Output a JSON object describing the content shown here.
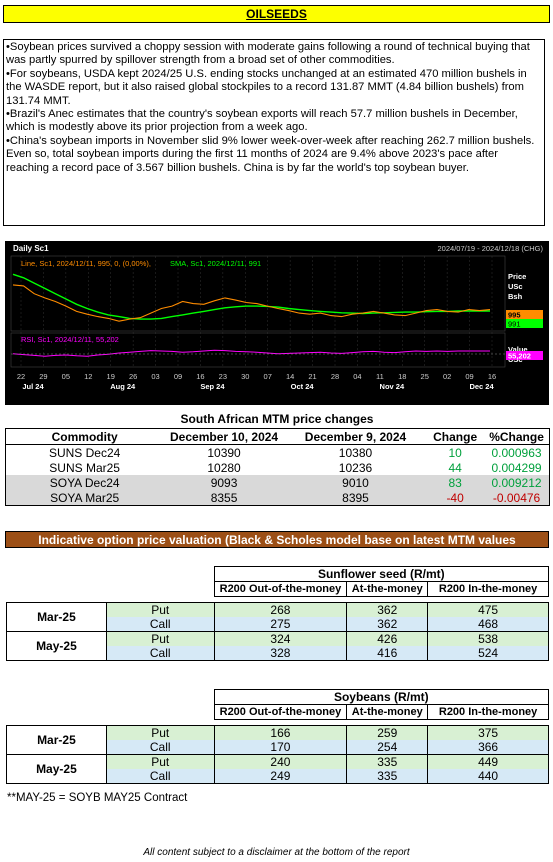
{
  "title": "OILSEEDS",
  "bullets": [
    "•Soybean prices survived a choppy session with moderate gains following a round of technical buying that was partly spurred by spillover strength from a broad set of other commodities.",
    "•For soybeans, USDA kept 2024/25 U.S. ending stocks unchanged at an estimated 470 million bushels in the WASDE report, but it also raised global stockpiles to a record 131.87 MMT (4.84 billion bushels) from 131.74 MMT.",
    "•Brazil's Anec estimates that the country's soybean exports will reach 57.7 million bushels in December, which is modestly above its prior projection from a week ago.",
    "•China's soybean imports in November slid 9% lower week-over-week after reaching 262.7 million bushels. Even so, total soybean imports during the first 11 months of 2024 are 9.4% above 2023's pace after reaching a record pace of 3.567 billion bushels. China is by far the world's top soybean buyer."
  ],
  "chart": {
    "title": "Daily Sc1",
    "date_range": "2024/07/19 - 2024/12/18 (CHG)",
    "legend_line": "Line, Sc1, 2024/12/11, 995, 0, (0,00%),",
    "legend_sma": "SMA, Sc1, 2024/12/11, 991",
    "legend_rsi": "RSI, Sc1, 2024/12/11, 55,202",
    "axis_price_lines": [
      "Price",
      "USc",
      "Bsh"
    ],
    "axis_value_lines": [
      "Value",
      "USc"
    ],
    "badge_price": "995",
    "badge_sma": "991",
    "badge_rsi": "55,202",
    "colors": {
      "line": "#ff8c00",
      "sma": "#00ff00",
      "rsi": "#ff00ff",
      "badge_price": "#ff8c00",
      "badge_sma": "#00ff00",
      "badge_rsi": "#ff00ff"
    },
    "x_ticks": [
      "22",
      "29",
      "05",
      "12",
      "19",
      "26",
      "03",
      "09",
      "16",
      "23",
      "30",
      "07",
      "14",
      "21",
      "28",
      "04",
      "11",
      "18",
      "25",
      "02",
      "09",
      "16"
    ],
    "month_labels": [
      "Jul 24",
      "Aug 24",
      "Sep 24",
      "Oct 24",
      "Nov 24",
      "Dec 24"
    ],
    "chart_data": {
      "type": "line",
      "series": [
        {
          "name": "Line",
          "values": [
            1065,
            1062,
            1040,
            1028,
            1018,
            1005,
            990,
            982,
            975,
            970,
            962,
            968,
            972,
            985,
            998,
            1005,
            1018,
            1012,
            1010,
            1020,
            1028,
            1022,
            1015,
            1012,
            1005,
            998,
            992,
            985,
            982,
            985,
            978,
            975,
            982,
            985,
            990,
            985,
            980,
            978,
            985,
            992,
            995,
            990,
            988,
            995,
            992,
            995
          ]
        },
        {
          "name": "SMA",
          "values": [
            1095,
            1085,
            1070,
            1055,
            1040,
            1025,
            1010,
            998,
            988,
            980,
            975,
            970,
            968,
            968,
            970,
            975,
            980,
            985,
            990,
            995,
            1000,
            1003,
            1005,
            1005,
            1004,
            1002,
            998,
            995,
            992,
            990,
            988,
            986,
            985,
            984,
            985,
            986,
            987,
            988,
            988,
            989,
            990,
            990,
            991,
            991,
            991,
            991
          ]
        },
        {
          "name": "RSI",
          "values": [
            48,
            46,
            44,
            42,
            44,
            45,
            43,
            42,
            45,
            47,
            50,
            52,
            54,
            56,
            55,
            54,
            52,
            53,
            55,
            57,
            56,
            54,
            53,
            52,
            50,
            48,
            49,
            50,
            51,
            52,
            50,
            49,
            51,
            53,
            54,
            52,
            51,
            53,
            55,
            54,
            55,
            54,
            55,
            55,
            55,
            55
          ]
        }
      ]
    }
  },
  "mtm": {
    "title": "South African MTM price changes",
    "headers": [
      "Commodity",
      "December 10, 2024",
      "December 9, 2024",
      "Change",
      "%Change"
    ],
    "rows": [
      {
        "commodity": "SUNS Dec24",
        "d1": "10390",
        "d2": "10380",
        "change": "10",
        "pct": "0.000963"
      },
      {
        "commodity": "SUNS Mar25",
        "d1": "10280",
        "d2": "10236",
        "change": "44",
        "pct": "0.004299"
      },
      {
        "commodity": "SOYA Dec24",
        "d1": "9093",
        "d2": "9010",
        "change": "83",
        "pct": "0.009212"
      },
      {
        "commodity": "SOYA Mar25",
        "d1": "8355",
        "d2": "8395",
        "change": "-40",
        "pct": "-0.00476"
      }
    ]
  },
  "options_title": "Indicative option price valuation (Black & Scholes model base on latest MTM values",
  "sunflower": {
    "title": "Sunflower seed (R/mt)",
    "cols": [
      "R200 Out-of-the-money",
      "At-the-money",
      "R200 In-the-money"
    ],
    "months": [
      {
        "month": "Mar-25",
        "put": [
          "268",
          "362",
          "475"
        ],
        "call": [
          "275",
          "362",
          "468"
        ]
      },
      {
        "month": "May-25",
        "put": [
          "324",
          "426",
          "538"
        ],
        "call": [
          "328",
          "416",
          "524"
        ]
      }
    ]
  },
  "soybeans": {
    "title": "Soybeans (R/mt)",
    "cols": [
      "R200 Out-of-the-money",
      "At-the-money",
      "R200 In-the-money"
    ],
    "months": [
      {
        "month": "Mar-25",
        "put": [
          "166",
          "259",
          "375"
        ],
        "call": [
          "170",
          "254",
          "366"
        ]
      },
      {
        "month": "May-25",
        "put": [
          "240",
          "335",
          "449"
        ],
        "call": [
          "249",
          "335",
          "440"
        ]
      }
    ]
  },
  "put_label": "Put",
  "call_label": "Call",
  "footnote": "**MAY-25 = SOYB MAY25 Contract",
  "disclaimer": "All content subject to a disclaimer at the bottom of the report"
}
